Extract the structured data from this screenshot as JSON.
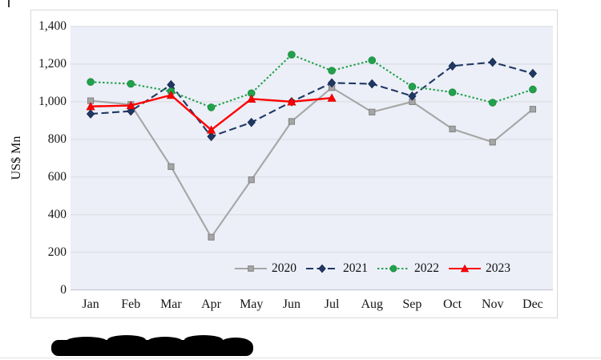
{
  "chart_data": {
    "type": "line",
    "title": "",
    "xlabel": "",
    "ylabel": "US$ Mn",
    "categories": [
      "Jan",
      "Feb",
      "Mar",
      "Apr",
      "May",
      "Jun",
      "Jul",
      "Aug",
      "Sep",
      "Oct",
      "Nov",
      "Dec"
    ],
    "ylim": [
      0,
      1400
    ],
    "ytick_step": 200,
    "yticks": [
      "0",
      "200",
      "400",
      "600",
      "800",
      "1,000",
      "1,200",
      "1,400"
    ],
    "grid": "horizontal",
    "legend_position": "bottom-inside",
    "plot_bg": "#ECEFF7",
    "grid_color": "#DFE2E9",
    "axis_line_color": "#C7CBD4",
    "series": [
      {
        "name": "2020",
        "color": "#A6A6A6",
        "marker_stroke": "#818181",
        "marker": "square",
        "line": "solid",
        "values": [
          1005,
          985,
          655,
          280,
          585,
          895,
          1075,
          945,
          1000,
          855,
          785,
          960
        ]
      },
      {
        "name": "2021",
        "color": "#1F3864",
        "marker_stroke": "#16264A",
        "marker": "diamond",
        "line": "dashed",
        "values": [
          935,
          950,
          1090,
          815,
          890,
          1000,
          1100,
          1095,
          1030,
          1190,
          1210,
          1150
        ]
      },
      {
        "name": "2022",
        "color": "#22A14C",
        "marker_stroke": "#1C8A40",
        "marker": "circle",
        "line": "dotted",
        "values": [
          1105,
          1095,
          1055,
          970,
          1045,
          1250,
          1165,
          1220,
          1080,
          1050,
          995,
          1065
        ]
      },
      {
        "name": "2023",
        "color": "#FF0000",
        "marker_stroke": "#D90000",
        "marker": "triangle",
        "line": "solid",
        "values": [
          975,
          980,
          1035,
          850,
          1015,
          1000,
          1020
        ]
      }
    ]
  }
}
